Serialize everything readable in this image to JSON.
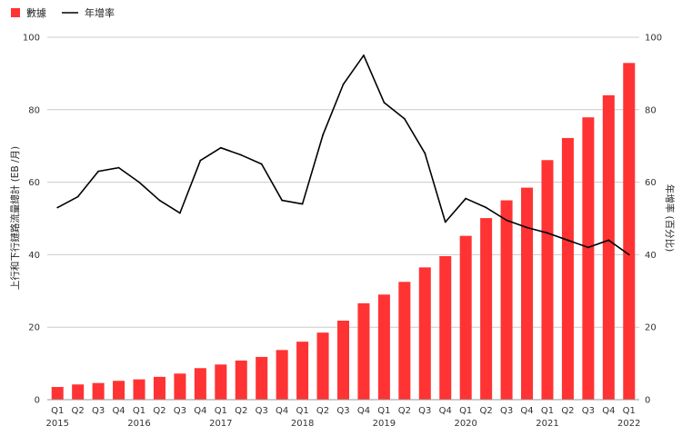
{
  "chart_data": {
    "type": "bar",
    "categories": [
      "Q1",
      "Q2",
      "Q3",
      "Q4",
      "Q1",
      "Q2",
      "Q3",
      "Q4",
      "Q1",
      "Q2",
      "Q3",
      "Q4",
      "Q1",
      "Q2",
      "Q3",
      "Q4",
      "Q1",
      "Q2",
      "Q3",
      "Q4",
      "Q1",
      "Q2",
      "Q3",
      "Q4",
      "Q1",
      "Q2",
      "Q3",
      "Q4",
      "Q1"
    ],
    "year_labels": [
      {
        "index": 0,
        "label": "2015"
      },
      {
        "index": 4,
        "label": "2016"
      },
      {
        "index": 8,
        "label": "2017"
      },
      {
        "index": 12,
        "label": "2018"
      },
      {
        "index": 16,
        "label": "2019"
      },
      {
        "index": 20,
        "label": "2020"
      },
      {
        "index": 24,
        "label": "2021"
      },
      {
        "index": 28,
        "label": "2022"
      }
    ],
    "series": [
      {
        "name": "數據",
        "type": "bar",
        "axis": "left",
        "color": "#ff3333",
        "values": [
          3.5,
          4.2,
          4.6,
          5.2,
          5.6,
          6.3,
          7.2,
          8.7,
          9.7,
          10.8,
          11.8,
          13.7,
          16.0,
          18.5,
          21.8,
          26.6,
          29.0,
          32.5,
          36.5,
          39.6,
          45.2,
          50.1,
          55.0,
          58.5,
          66.1,
          72.2,
          77.9,
          84.0,
          92.9
        ]
      },
      {
        "name": "年增率",
        "type": "line",
        "axis": "right",
        "color": "#000000",
        "values": [
          53,
          56,
          63,
          64,
          60,
          55,
          51.5,
          66,
          69.5,
          67.5,
          65,
          55,
          54,
          73,
          87,
          95,
          82,
          77.5,
          68,
          49,
          55.5,
          53,
          49.5,
          47.5,
          46,
          44,
          42,
          44,
          40
        ]
      }
    ],
    "ylabel": "上行和下行鏈路流量總計 (EB /月)",
    "y2label": "年增率 (百分比)",
    "ylim": [
      0,
      100
    ],
    "y2lim": [
      0,
      100
    ],
    "yticks": [
      "0",
      "20",
      "40",
      "60",
      "80",
      "100"
    ],
    "y2ticks": [
      "0",
      "20",
      "40",
      "60",
      "80",
      "100"
    ],
    "legend_position": "top-left",
    "grid": true,
    "grid_color": "#cccccc"
  }
}
